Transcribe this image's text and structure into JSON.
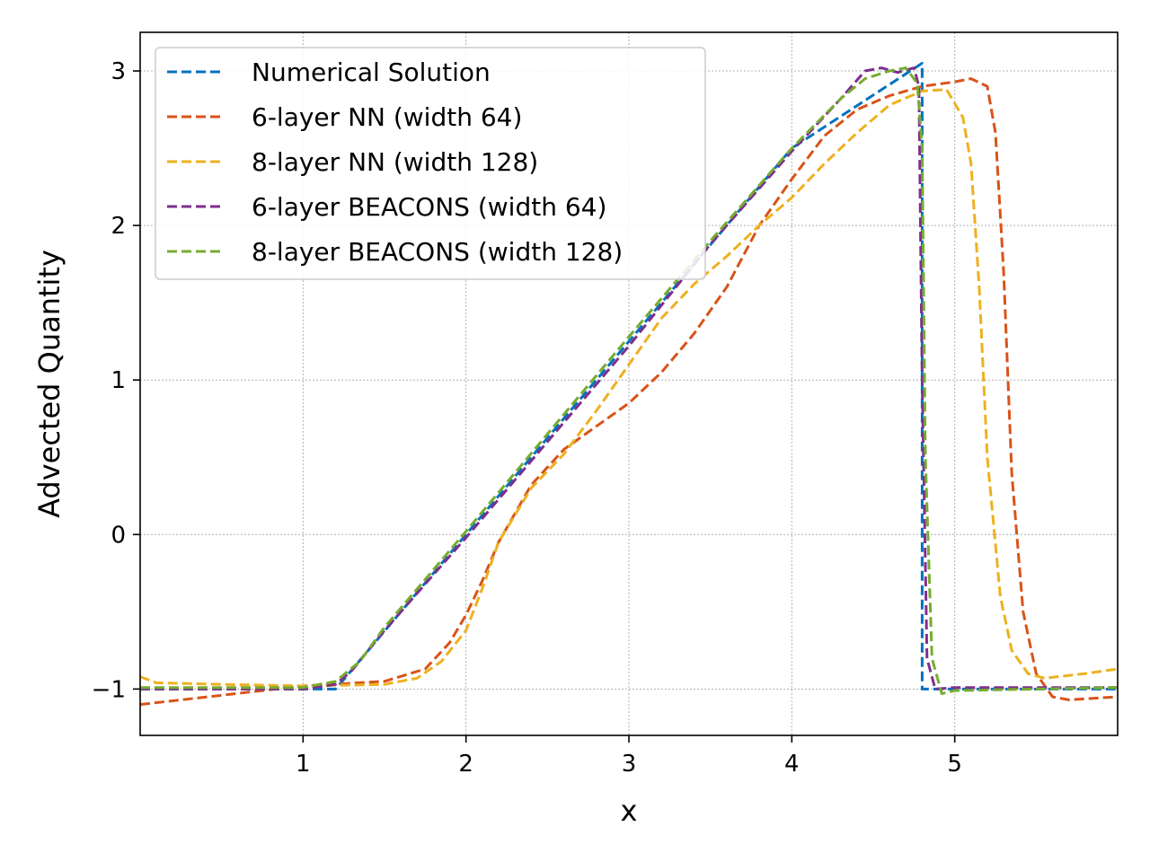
{
  "chart_data": {
    "type": "line",
    "title": "",
    "xlabel": "x",
    "ylabel": "Advected Quantity",
    "xlim": [
      0.0,
      6.0
    ],
    "ylim": [
      -1.3,
      3.25
    ],
    "xticks": [
      1,
      2,
      3,
      4,
      5
    ],
    "yticks": [
      -1,
      0,
      1,
      2,
      3
    ],
    "xtick_labels": [
      "1",
      "2",
      "3",
      "4",
      "5"
    ],
    "ytick_labels": [
      "−1",
      "0",
      "1",
      "2",
      "3"
    ],
    "grid": true,
    "legend_position": "top-left",
    "line_style": "dashed",
    "series": [
      {
        "name": "Numerical Solution",
        "color": "#0072BD",
        "points": [
          [
            0.0,
            -1.0
          ],
          [
            1.2,
            -1.0
          ],
          [
            2.0,
            0.0
          ],
          [
            3.0,
            1.25
          ],
          [
            4.0,
            2.5
          ],
          [
            4.8,
            3.05
          ],
          [
            4.8,
            -1.0
          ],
          [
            6.0,
            -1.0
          ]
        ]
      },
      {
        "name": "6-layer NN (width 64)",
        "color": "#D95319",
        "points": [
          [
            0.0,
            -1.1
          ],
          [
            0.5,
            -1.04
          ],
          [
            1.0,
            -0.98
          ],
          [
            1.5,
            -0.95
          ],
          [
            1.75,
            -0.87
          ],
          [
            1.9,
            -0.7
          ],
          [
            2.0,
            -0.52
          ],
          [
            2.1,
            -0.3
          ],
          [
            2.2,
            -0.05
          ],
          [
            2.4,
            0.32
          ],
          [
            2.6,
            0.55
          ],
          [
            2.8,
            0.7
          ],
          [
            3.0,
            0.85
          ],
          [
            3.2,
            1.05
          ],
          [
            3.4,
            1.3
          ],
          [
            3.6,
            1.6
          ],
          [
            3.8,
            2.0
          ],
          [
            4.0,
            2.3
          ],
          [
            4.2,
            2.58
          ],
          [
            4.4,
            2.75
          ],
          [
            4.6,
            2.84
          ],
          [
            4.8,
            2.9
          ],
          [
            5.0,
            2.93
          ],
          [
            5.1,
            2.95
          ],
          [
            5.2,
            2.9
          ],
          [
            5.25,
            2.6
          ],
          [
            5.3,
            1.7
          ],
          [
            5.35,
            0.4
          ],
          [
            5.42,
            -0.5
          ],
          [
            5.5,
            -0.9
          ],
          [
            5.6,
            -1.05
          ],
          [
            5.7,
            -1.07
          ],
          [
            6.0,
            -1.05
          ]
        ]
      },
      {
        "name": "8-layer NN (width 128)",
        "color": "#EDB120",
        "points": [
          [
            0.0,
            -0.92
          ],
          [
            0.1,
            -0.96
          ],
          [
            0.5,
            -0.97
          ],
          [
            1.0,
            -0.98
          ],
          [
            1.5,
            -0.97
          ],
          [
            1.7,
            -0.93
          ],
          [
            1.85,
            -0.82
          ],
          [
            2.0,
            -0.62
          ],
          [
            2.1,
            -0.35
          ],
          [
            2.2,
            -0.05
          ],
          [
            2.4,
            0.3
          ],
          [
            2.6,
            0.52
          ],
          [
            2.8,
            0.8
          ],
          [
            3.0,
            1.1
          ],
          [
            3.2,
            1.4
          ],
          [
            3.4,
            1.62
          ],
          [
            3.6,
            1.8
          ],
          [
            3.8,
            2.0
          ],
          [
            4.0,
            2.18
          ],
          [
            4.2,
            2.4
          ],
          [
            4.4,
            2.6
          ],
          [
            4.6,
            2.78
          ],
          [
            4.8,
            2.87
          ],
          [
            4.95,
            2.88
          ],
          [
            5.05,
            2.7
          ],
          [
            5.1,
            2.4
          ],
          [
            5.15,
            1.6
          ],
          [
            5.2,
            0.5
          ],
          [
            5.28,
            -0.4
          ],
          [
            5.35,
            -0.75
          ],
          [
            5.45,
            -0.9
          ],
          [
            5.55,
            -0.93
          ],
          [
            5.8,
            -0.9
          ],
          [
            6.0,
            -0.87
          ]
        ]
      },
      {
        "name": "6-layer BEACONS (width 64)",
        "color": "#7E2F8E",
        "points": [
          [
            0.0,
            -1.0
          ],
          [
            1.0,
            -1.0
          ],
          [
            1.2,
            -0.97
          ],
          [
            1.3,
            -0.88
          ],
          [
            1.5,
            -0.62
          ],
          [
            2.0,
            -0.02
          ],
          [
            2.5,
            0.6
          ],
          [
            3.0,
            1.22
          ],
          [
            3.5,
            1.88
          ],
          [
            4.0,
            2.48
          ],
          [
            4.3,
            2.82
          ],
          [
            4.45,
            3.0
          ],
          [
            4.55,
            3.02
          ],
          [
            4.65,
            2.99
          ],
          [
            4.75,
            3.02
          ],
          [
            4.78,
            2.9
          ],
          [
            4.8,
            1.0
          ],
          [
            4.83,
            -0.8
          ],
          [
            4.88,
            -1.0
          ],
          [
            5.0,
            -0.99
          ],
          [
            6.0,
            -0.99
          ]
        ]
      },
      {
        "name": "8-layer BEACONS (width 128)",
        "color": "#77AC30",
        "points": [
          [
            0.0,
            -0.99
          ],
          [
            1.0,
            -0.99
          ],
          [
            1.2,
            -0.95
          ],
          [
            1.35,
            -0.82
          ],
          [
            1.5,
            -0.6
          ],
          [
            2.0,
            0.02
          ],
          [
            2.5,
            0.65
          ],
          [
            3.0,
            1.28
          ],
          [
            3.5,
            1.9
          ],
          [
            4.0,
            2.5
          ],
          [
            4.3,
            2.82
          ],
          [
            4.45,
            2.95
          ],
          [
            4.6,
            3.0
          ],
          [
            4.7,
            3.02
          ],
          [
            4.77,
            2.92
          ],
          [
            4.8,
            2.5
          ],
          [
            4.82,
            0.5
          ],
          [
            4.86,
            -0.8
          ],
          [
            4.92,
            -1.03
          ],
          [
            5.0,
            -1.01
          ],
          [
            6.0,
            -0.99
          ]
        ]
      }
    ]
  }
}
